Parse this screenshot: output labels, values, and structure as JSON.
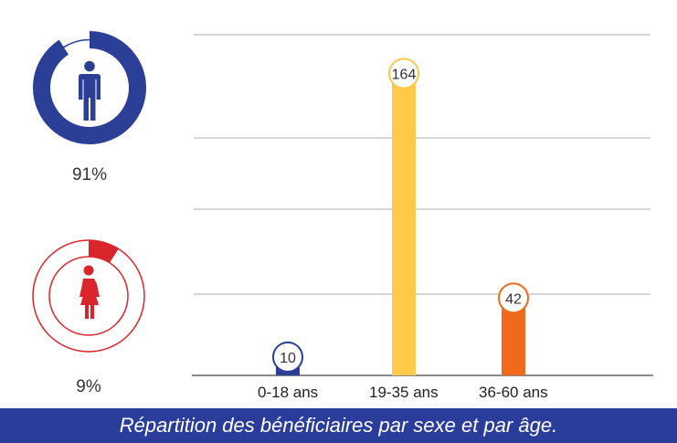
{
  "caption": "Répartition des bénéficiaires par sexe et par âge.",
  "gender": {
    "male": {
      "percent": 91,
      "label": "91%",
      "icon": "man-icon",
      "color": "#2b3f96"
    },
    "female": {
      "percent": 9,
      "label": "9%",
      "icon": "woman-icon",
      "color": "#d9252b"
    }
  },
  "chart_data": {
    "type": "bar",
    "categories": [
      "0-18 ans",
      "19-35 ans",
      "36-60 ans"
    ],
    "values": [
      10,
      164,
      42
    ],
    "colors": [
      "#2b3f96",
      "#ffc94a",
      "#ef6a1a"
    ],
    "title": "",
    "xlabel": "",
    "ylabel": "",
    "ylim": [
      0,
      185
    ],
    "grid": true,
    "legend": "none"
  }
}
